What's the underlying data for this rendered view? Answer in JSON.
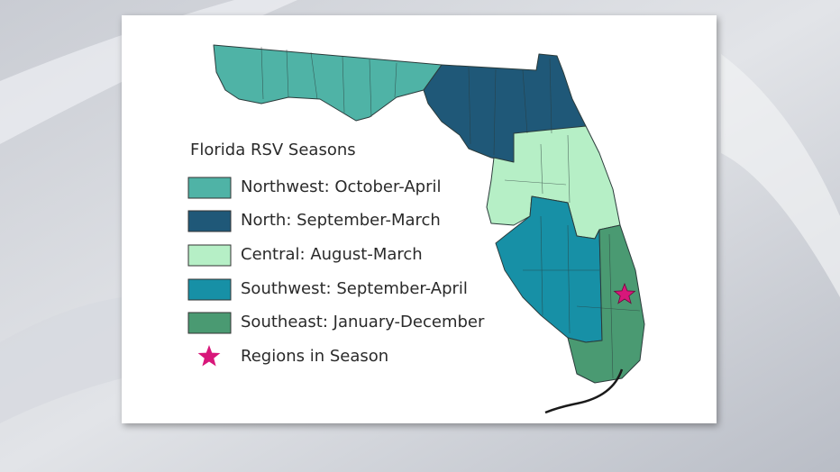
{
  "legend": {
    "title": "Florida RSV Seasons",
    "items": [
      {
        "label": "Northwest: October-April",
        "color": "#4fb3a6"
      },
      {
        "label": "North: September-March",
        "color": "#1f5878"
      },
      {
        "label": "Central: August-March",
        "color": "#b6efc6"
      },
      {
        "label": "Southwest: September-April",
        "color": "#1790a6"
      },
      {
        "label": "Southeast: January-December",
        "color": "#4a9a72"
      }
    ],
    "marker": {
      "label": "Regions in Season",
      "color": "#d8177a"
    }
  }
}
